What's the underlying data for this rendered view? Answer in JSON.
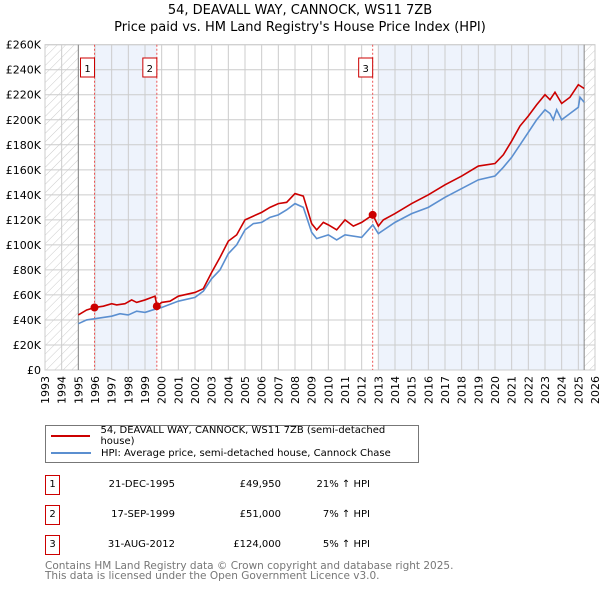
{
  "chart_data": {
    "type": "line",
    "title": "54, DEAVALL WAY, CANNOCK, WS11 7ZB",
    "subtitle": "Price paid vs. HM Land Registry's House Price Index (HPI)",
    "xlim": [
      1993,
      2026
    ],
    "ylim": [
      0,
      260000
    ],
    "x_ticks": [
      "1993",
      "1994",
      "1995",
      "1996",
      "1997",
      "1998",
      "1999",
      "2000",
      "2001",
      "2002",
      "2003",
      "2004",
      "2005",
      "2006",
      "2007",
      "2008",
      "2009",
      "2010",
      "2011",
      "2012",
      "2013",
      "2014",
      "2015",
      "2016",
      "2017",
      "2018",
      "2019",
      "2020",
      "2021",
      "2022",
      "2023",
      "2024",
      "2025",
      "2026"
    ],
    "y_ticks": [
      "£0",
      "£20K",
      "£40K",
      "£60K",
      "£80K",
      "£100K",
      "£120K",
      "£140K",
      "£160K",
      "£180K",
      "£200K",
      "£220K",
      "£240K",
      "£260K"
    ],
    "grid": true,
    "series": [
      {
        "name": "54, DEAVALL WAY, CANNOCK, WS11 7ZB (semi-detached house)",
        "color": "#cc0000",
        "points": [
          [
            1995.0,
            44
          ],
          [
            1995.5,
            48
          ],
          [
            1996,
            50
          ],
          [
            1996.5,
            51
          ],
          [
            1997,
            53
          ],
          [
            1997.3,
            52
          ],
          [
            1997.8,
            53
          ],
          [
            1998.2,
            56
          ],
          [
            1998.5,
            54
          ],
          [
            1999,
            56
          ],
          [
            1999.6,
            59
          ],
          [
            1999.72,
            51
          ],
          [
            2000,
            54
          ],
          [
            2000.5,
            55
          ],
          [
            2001,
            59
          ],
          [
            2002,
            62
          ],
          [
            2002.5,
            65
          ],
          [
            2003,
            78
          ],
          [
            2003.5,
            90
          ],
          [
            2004,
            103
          ],
          [
            2004.5,
            108
          ],
          [
            2005,
            120
          ],
          [
            2005.5,
            123
          ],
          [
            2006,
            126
          ],
          [
            2006.5,
            130
          ],
          [
            2007,
            133
          ],
          [
            2007.5,
            134
          ],
          [
            2008,
            141
          ],
          [
            2008.5,
            139
          ],
          [
            2009,
            117
          ],
          [
            2009.3,
            112
          ],
          [
            2009.7,
            118
          ],
          [
            2010,
            116
          ],
          [
            2010.5,
            112
          ],
          [
            2011,
            120
          ],
          [
            2011.5,
            115
          ],
          [
            2012,
            118
          ],
          [
            2012.67,
            124
          ],
          [
            2013,
            115
          ],
          [
            2013.3,
            120
          ],
          [
            2014,
            125
          ],
          [
            2015,
            133
          ],
          [
            2016,
            140
          ],
          [
            2017,
            148
          ],
          [
            2018,
            155
          ],
          [
            2019,
            163
          ],
          [
            2020,
            165
          ],
          [
            2020.5,
            172
          ],
          [
            2021,
            183
          ],
          [
            2021.5,
            195
          ],
          [
            2022,
            203
          ],
          [
            2022.5,
            212
          ],
          [
            2023,
            220
          ],
          [
            2023.3,
            216
          ],
          [
            2023.6,
            222
          ],
          [
            2024,
            213
          ],
          [
            2024.5,
            218
          ],
          [
            2025,
            228
          ],
          [
            2025.35,
            225
          ]
        ]
      },
      {
        "name": "HPI: Average price, semi-detached house, Cannock Chase",
        "color": "#5b8fd0",
        "points": [
          [
            1995.0,
            37
          ],
          [
            1995.5,
            40
          ],
          [
            1996,
            41
          ],
          [
            1997,
            43
          ],
          [
            1997.5,
            45
          ],
          [
            1998,
            44
          ],
          [
            1998.5,
            47
          ],
          [
            1999,
            46
          ],
          [
            1999.7,
            49
          ],
          [
            2000,
            50
          ],
          [
            2001,
            55
          ],
          [
            2002,
            58
          ],
          [
            2002.5,
            63
          ],
          [
            2003,
            73
          ],
          [
            2003.5,
            80
          ],
          [
            2004,
            93
          ],
          [
            2004.5,
            100
          ],
          [
            2005,
            112
          ],
          [
            2005.5,
            117
          ],
          [
            2006,
            118
          ],
          [
            2006.5,
            122
          ],
          [
            2007,
            124
          ],
          [
            2007.5,
            128
          ],
          [
            2008,
            133
          ],
          [
            2008.5,
            130
          ],
          [
            2009,
            110
          ],
          [
            2009.3,
            105
          ],
          [
            2010,
            108
          ],
          [
            2010.5,
            104
          ],
          [
            2011,
            108
          ],
          [
            2012,
            106
          ],
          [
            2012.67,
            116
          ],
          [
            2013,
            109
          ],
          [
            2014,
            118
          ],
          [
            2015,
            125
          ],
          [
            2016,
            130
          ],
          [
            2017,
            138
          ],
          [
            2018,
            145
          ],
          [
            2019,
            152
          ],
          [
            2020,
            155
          ],
          [
            2020.5,
            162
          ],
          [
            2021,
            170
          ],
          [
            2021.5,
            180
          ],
          [
            2022,
            190
          ],
          [
            2022.5,
            200
          ],
          [
            2023,
            208
          ],
          [
            2023.3,
            205
          ],
          [
            2023.5,
            200
          ],
          [
            2023.7,
            208
          ],
          [
            2024,
            200
          ],
          [
            2024.5,
            205
          ],
          [
            2025,
            210
          ],
          [
            2025.1,
            218
          ],
          [
            2025.35,
            214
          ]
        ]
      }
    ],
    "sales": [
      {
        "label": "1",
        "year": 1995.97,
        "price": 49950
      },
      {
        "label": "2",
        "year": 1999.71,
        "price": 51000
      },
      {
        "label": "3",
        "year": 2012.66,
        "price": 124000
      }
    ],
    "shaded_ranges": [
      [
        1995.97,
        1999.71
      ],
      [
        2013.0,
        2025.35
      ]
    ],
    "hatched_ranges": [
      [
        1993,
        1995
      ],
      [
        2025.35,
        2026
      ]
    ]
  },
  "legend": {
    "property": "54, DEAVALL WAY, CANNOCK, WS11 7ZB (semi-detached house)",
    "hpi": "HPI: Average price, semi-detached house, Cannock Chase"
  },
  "transactions": [
    {
      "num": "1",
      "date": "21-DEC-1995",
      "price": "£49,950",
      "hpi": "21% ↑ HPI"
    },
    {
      "num": "2",
      "date": "17-SEP-1999",
      "price": "£51,000",
      "hpi": "7% ↑ HPI"
    },
    {
      "num": "3",
      "date": "31-AUG-2012",
      "price": "£124,000",
      "hpi": "5% ↑ HPI"
    }
  ],
  "footer": {
    "line1": "Contains HM Land Registry data © Crown copyright and database right 2025.",
    "line2": "This data is licensed under the Open Government Licence v3.0."
  }
}
